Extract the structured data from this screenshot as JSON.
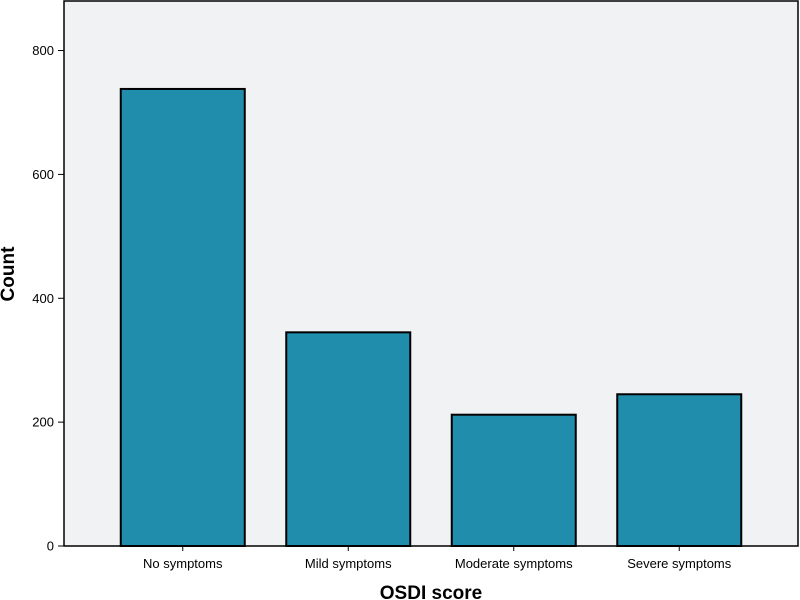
{
  "chart_data": {
    "type": "bar",
    "categories": [
      "No symptoms",
      "Mild symptoms",
      "Moderate symptoms",
      "Severe symptoms"
    ],
    "values": [
      738,
      345,
      212,
      245
    ],
    "title": "",
    "xlabel": "OSDI score",
    "ylabel": "Count",
    "ylim": [
      0,
      880
    ],
    "yticks": [
      0,
      200,
      400,
      600,
      800
    ],
    "grid": false,
    "legend": "none",
    "colors": {
      "bar_fill": "#218DAC",
      "bar_stroke": "#000000",
      "plot_background": "#F1F2F4",
      "frame": "#000000"
    }
  }
}
